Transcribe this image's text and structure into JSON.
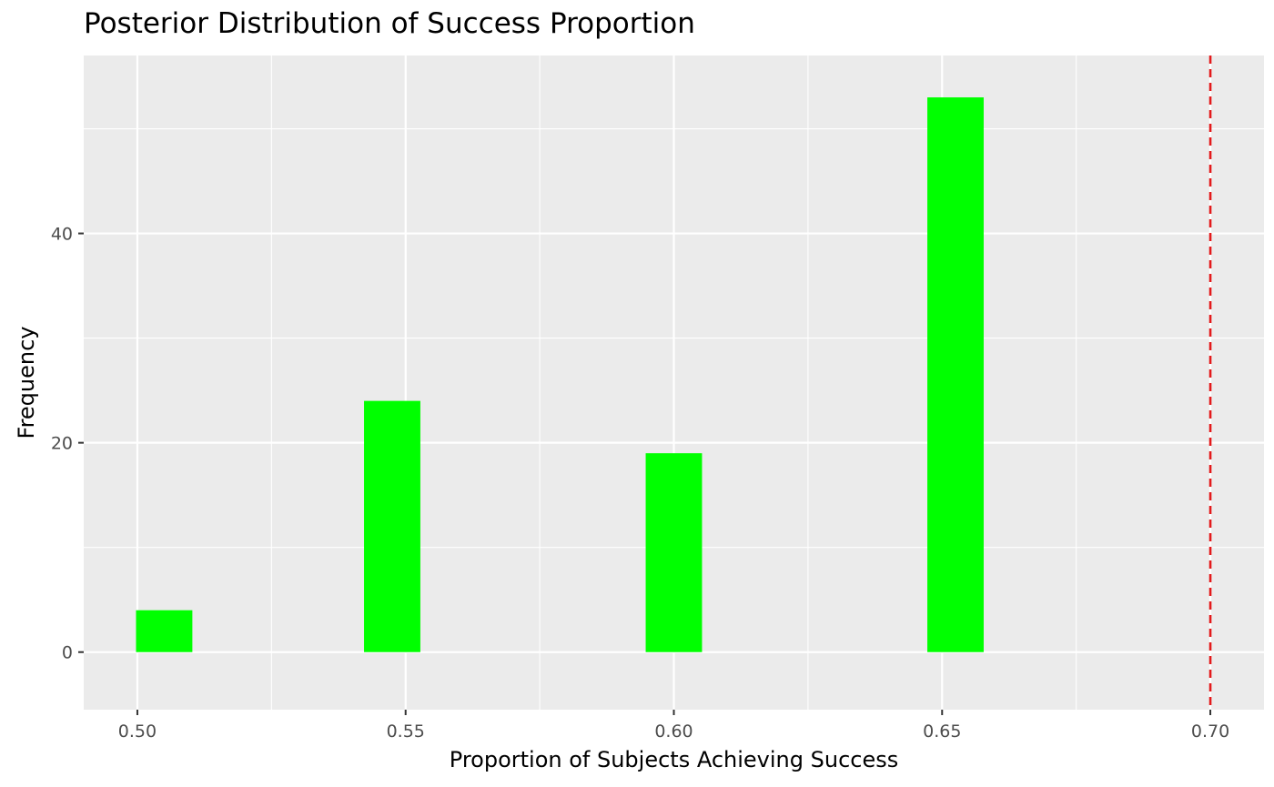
{
  "chart_data": {
    "type": "bar",
    "title": "Posterior Distribution of Success Proportion",
    "xlabel": "Proportion of Subjects Achieving Success",
    "ylabel": "Frequency",
    "xlim": [
      0.49,
      0.71
    ],
    "ylim": [
      -5.5,
      57
    ],
    "bin_width": 0.0105,
    "x": [
      0.505,
      0.5475,
      0.6,
      0.6525
    ],
    "values": [
      4,
      24,
      19,
      53
    ],
    "x_ticks": [
      0.5,
      0.55,
      0.6,
      0.65,
      0.7
    ],
    "x_tick_labels": [
      "0.50",
      "0.55",
      "0.60",
      "0.65",
      "0.70"
    ],
    "x_minor_gridlines": [
      0.525,
      0.575,
      0.625,
      0.675
    ],
    "y_ticks": [
      0,
      20,
      40
    ],
    "y_tick_labels": [
      "0",
      "20",
      "40"
    ],
    "y_minor_gridlines": [
      10,
      30,
      50
    ],
    "reference_line": {
      "x": 0.7,
      "style": "dashed",
      "color": "#e31a1c"
    },
    "bar_color": "#00ff00",
    "panel_background": "#ebebeb",
    "grid": true,
    "legend": "none"
  }
}
